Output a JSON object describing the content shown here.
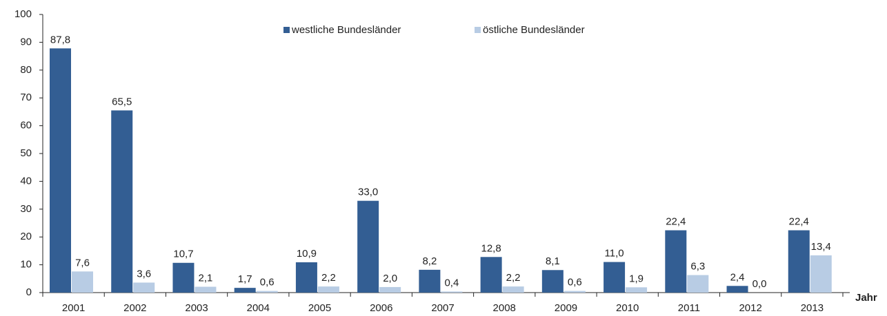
{
  "chart_data": {
    "type": "bar",
    "x_label": "Jahr",
    "categories": [
      "2001",
      "2002",
      "2003",
      "2004",
      "2005",
      "2006",
      "2007",
      "2008",
      "2009",
      "2010",
      "2011",
      "2012",
      "2013"
    ],
    "series": [
      {
        "name": "westliche Bundesländer",
        "color": "#335e93",
        "values": [
          87.8,
          65.5,
          10.7,
          1.7,
          10.9,
          33.0,
          8.2,
          12.8,
          8.1,
          11.0,
          22.4,
          2.4,
          22.4
        ],
        "value_labels": [
          "87,8",
          "65,5",
          "10,7",
          "1,7",
          "10,9",
          "33,0",
          "8,2",
          "12,8",
          "8,1",
          "11,0",
          "22,4",
          "2,4",
          "22,4"
        ]
      },
      {
        "name": "östliche Bundesländer",
        "color": "#b8cce4",
        "values": [
          7.6,
          3.6,
          2.1,
          0.6,
          2.2,
          2.0,
          0.4,
          2.2,
          0.6,
          1.9,
          6.3,
          0.0,
          13.4
        ],
        "value_labels": [
          "7,6",
          "3,6",
          "2,1",
          "0,6",
          "2,2",
          "2,0",
          "0,4",
          "2,2",
          "0,6",
          "1,9",
          "6,3",
          "0,0",
          "13,4"
        ]
      }
    ],
    "ylim": [
      0,
      100
    ],
    "yticks": [
      0,
      10,
      20,
      30,
      40,
      50,
      60,
      70,
      80,
      90,
      100
    ],
    "grid": false
  }
}
